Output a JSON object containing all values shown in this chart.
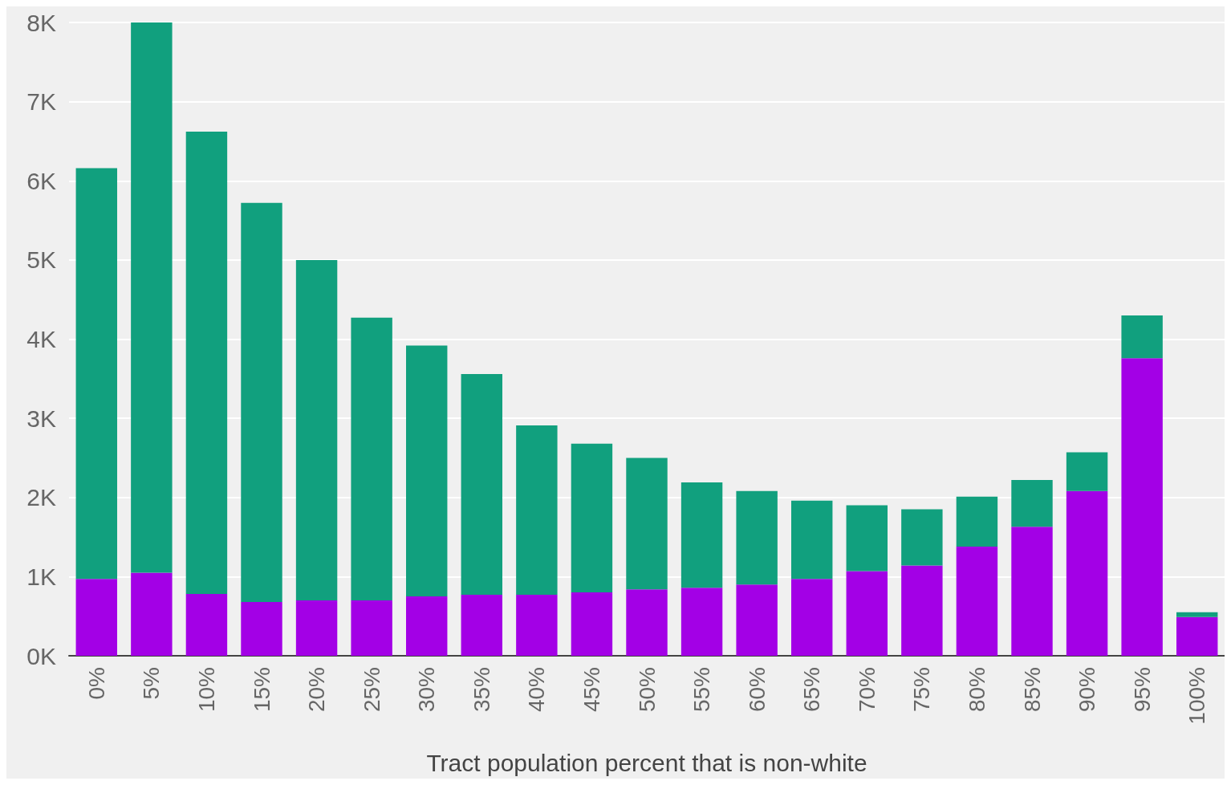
{
  "chart_data": {
    "type": "bar",
    "stacked": true,
    "xlabel": "Tract population percent that is non-white",
    "categories": [
      "0%",
      "5%",
      "10%",
      "15%",
      "20%",
      "25%",
      "30%",
      "35%",
      "40%",
      "45%",
      "50%",
      "55%",
      "60%",
      "65%",
      "70%",
      "75%",
      "80%",
      "85%",
      "90%",
      "95%",
      "100%"
    ],
    "series": [
      {
        "color": "#a300e6",
        "values": [
          970,
          1050,
          780,
          680,
          700,
          700,
          750,
          770,
          770,
          800,
          840,
          860,
          900,
          970,
          1070,
          1140,
          1380,
          1630,
          2080,
          3760,
          490
        ]
      },
      {
        "color": "#11a07e",
        "values": [
          5190,
          6980,
          5840,
          5040,
          4300,
          3570,
          3170,
          2790,
          2140,
          1880,
          1660,
          1330,
          1180,
          990,
          830,
          710,
          630,
          590,
          490,
          540,
          60
        ]
      }
    ],
    "ylim": [
      0,
      8000
    ],
    "yticks": [
      {
        "value": 0,
        "label": "0K"
      },
      {
        "value": 1000,
        "label": "1K"
      },
      {
        "value": 2000,
        "label": "2K"
      },
      {
        "value": 3000,
        "label": "3K"
      },
      {
        "value": 4000,
        "label": "4K"
      },
      {
        "value": 5000,
        "label": "5K"
      },
      {
        "value": 6000,
        "label": "6K"
      },
      {
        "value": 7000,
        "label": "7K"
      },
      {
        "value": 8000,
        "label": "8K"
      }
    ],
    "grid": "y"
  }
}
